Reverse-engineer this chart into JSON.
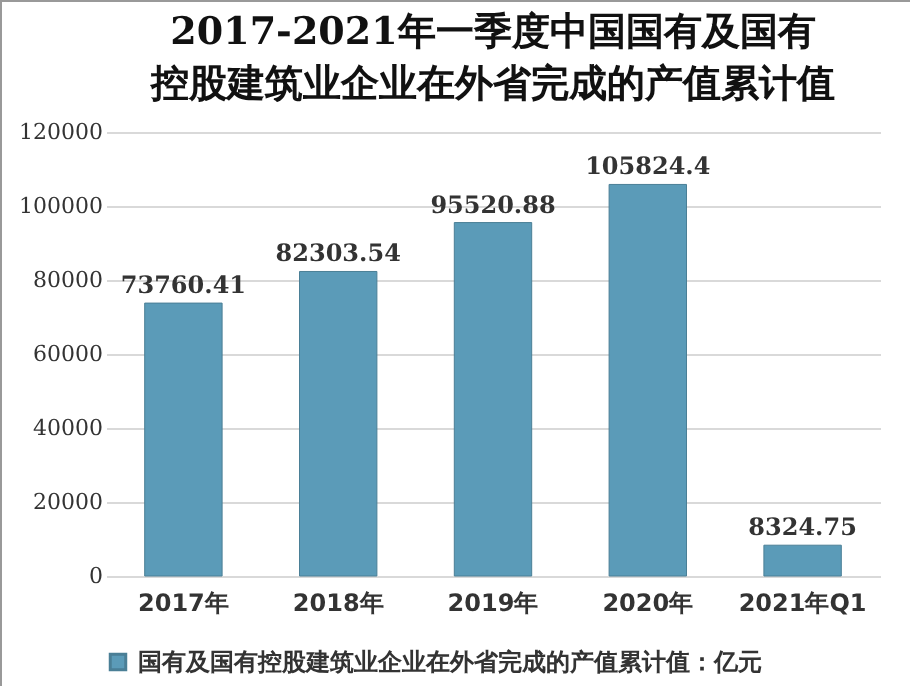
{
  "chart_data": {
    "type": "bar",
    "title": "2017-2021年一季度中国国有及国有控股建筑业企业在外省完成的产值累计值",
    "categories": [
      "2017年",
      "2018年",
      "2019年",
      "2020年",
      "2021年Q1"
    ],
    "series": [
      {
        "name": "国有及国有控股建筑业企业在外省完成的产值累计值：亿元",
        "color": "#5b9bb8",
        "values": [
          73760.41,
          82303.54,
          95520.88,
          105824.4,
          8324.75
        ]
      }
    ],
    "ylim": [
      0,
      120000
    ],
    "yticks": [
      0,
      20000,
      40000,
      60000,
      80000,
      100000,
      120000
    ],
    "grid": "y",
    "legend": "bottom",
    "data_labels": true
  }
}
